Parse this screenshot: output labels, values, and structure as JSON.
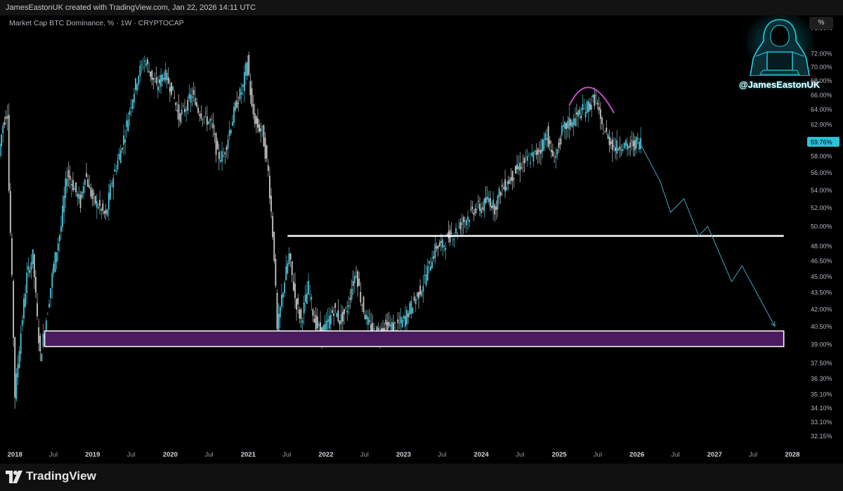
{
  "header": {
    "credit": "JamesEastonUK created with TradingView.com, Jan 22, 2026 14:11 UTC"
  },
  "symbol": {
    "title": "Market Cap BTC Dominance, % · 1W · CRYPTOCAP"
  },
  "scale_button": "%",
  "watermark": {
    "handle": "@JamesEastonUK",
    "icon": "hooded-hacker-at-laptop"
  },
  "footer": {
    "brand": "TradingView",
    "icon": "tradingview-logo-icon"
  },
  "colors": {
    "background": "#000000",
    "candle_up": "#4dc3d8",
    "candle_down": "#c8c8c8",
    "support_zone_fill": "#4a1c5e",
    "support_zone_border": "#ffffff",
    "resistance_line": "#ffffff",
    "arc": "#c34ac9",
    "projection": "#3aa7c4",
    "price_tag": "#2ec2d8"
  },
  "chart_data": {
    "type": "candlestick",
    "title": "Market Cap BTC Dominance, % · 1W · CRYPTOCAP",
    "interval": "1W",
    "scale": "log",
    "ylim": [
      31.6,
      78.0
    ],
    "xlim": [
      "2017-10-23",
      "2028-03-01"
    ],
    "y_tick_labels": [
      "76.00%",
      "72.00%",
      "70.00%",
      "68.00%",
      "66.00%",
      "64.00%",
      "62.00%",
      "58.00%",
      "56.00%",
      "54.00%",
      "52.00%",
      "50.00%",
      "48.00%",
      "46.50%",
      "45.00%",
      "43.50%",
      "42.00%",
      "40.50%",
      "39.00%",
      "37.50%",
      "36.30%",
      "35.10%",
      "34.10%",
      "33.10%",
      "32.15%"
    ],
    "x_tick_labels": [
      "2018",
      "Jul",
      "2019",
      "Jul",
      "2020",
      "Jul",
      "2021",
      "Jul",
      "2022",
      "Jul",
      "2023",
      "Jul",
      "2024",
      "Jul",
      "2025",
      "Jul",
      "2026",
      "Jul",
      "2027",
      "Jul",
      "2028"
    ],
    "last_value_label": "59.76%",
    "last_value": 59.76,
    "price_path": [
      [
        "2017-10-23",
        58
      ],
      [
        "2017-11-13",
        62
      ],
      [
        "2017-12-04",
        64
      ],
      [
        "2017-12-11",
        54
      ],
      [
        "2018-01-08",
        35
      ],
      [
        "2018-02-05",
        40
      ],
      [
        "2018-03-05",
        45
      ],
      [
        "2018-04-02",
        47
      ],
      [
        "2018-04-23",
        41
      ],
      [
        "2018-05-07",
        38
      ],
      [
        "2018-05-21",
        39.5
      ],
      [
        "2018-06-11",
        42
      ],
      [
        "2018-07-09",
        46
      ],
      [
        "2018-08-13",
        50
      ],
      [
        "2018-09-10",
        56
      ],
      [
        "2018-10-08",
        54.5
      ],
      [
        "2018-11-12",
        52.5
      ],
      [
        "2018-12-03",
        56
      ],
      [
        "2019-01-07",
        53
      ],
      [
        "2019-02-11",
        52
      ],
      [
        "2019-03-11",
        51
      ],
      [
        "2019-04-08",
        55
      ],
      [
        "2019-05-13",
        58
      ],
      [
        "2019-06-10",
        61
      ],
      [
        "2019-07-08",
        65
      ],
      [
        "2019-08-12",
        69
      ],
      [
        "2019-09-09",
        71
      ],
      [
        "2019-10-07",
        69
      ],
      [
        "2019-11-04",
        67
      ],
      [
        "2019-12-09",
        69
      ],
      [
        "2020-01-13",
        67
      ],
      [
        "2020-02-17",
        63
      ],
      [
        "2020-03-16",
        64
      ],
      [
        "2020-04-20",
        66
      ],
      [
        "2020-05-18",
        64
      ],
      [
        "2020-06-15",
        63
      ],
      [
        "2020-07-20",
        62
      ],
      [
        "2020-08-17",
        58
      ],
      [
        "2020-09-14",
        58
      ],
      [
        "2020-10-19",
        62
      ],
      [
        "2020-11-16",
        65
      ],
      [
        "2020-12-14",
        67
      ],
      [
        "2021-01-04",
        71
      ],
      [
        "2021-01-25",
        64
      ],
      [
        "2021-02-15",
        62
      ],
      [
        "2021-03-15",
        61
      ],
      [
        "2021-04-12",
        56
      ],
      [
        "2021-05-10",
        47
      ],
      [
        "2021-05-24",
        40
      ],
      [
        "2021-06-14",
        43
      ],
      [
        "2021-07-19",
        47
      ],
      [
        "2021-08-16",
        43
      ],
      [
        "2021-09-13",
        41
      ],
      [
        "2021-10-18",
        44
      ],
      [
        "2021-11-15",
        41
      ],
      [
        "2021-12-13",
        40
      ],
      [
        "2022-01-10",
        40.5
      ],
      [
        "2022-02-14",
        42
      ],
      [
        "2022-03-14",
        41
      ],
      [
        "2022-04-18",
        42
      ],
      [
        "2022-05-09",
        44
      ],
      [
        "2022-05-30",
        45.5
      ],
      [
        "2022-06-20",
        43
      ],
      [
        "2022-07-18",
        41
      ],
      [
        "2022-08-15",
        40
      ],
      [
        "2022-09-12",
        40
      ],
      [
        "2022-10-10",
        40.5
      ],
      [
        "2022-11-07",
        40.5
      ],
      [
        "2022-12-05",
        40.5
      ],
      [
        "2023-01-09",
        41
      ],
      [
        "2023-02-06",
        42
      ],
      [
        "2023-03-06",
        43
      ],
      [
        "2023-04-03",
        44
      ],
      [
        "2023-05-08",
        46
      ],
      [
        "2023-06-12",
        48
      ],
      [
        "2023-07-10",
        48
      ],
      [
        "2023-08-07",
        49
      ],
      [
        "2023-09-11",
        49.5
      ],
      [
        "2023-10-09",
        50.5
      ],
      [
        "2023-11-06",
        51
      ],
      [
        "2023-12-11",
        52
      ],
      [
        "2024-01-08",
        52
      ],
      [
        "2024-02-12",
        53
      ],
      [
        "2024-03-11",
        52
      ],
      [
        "2024-04-08",
        54
      ],
      [
        "2024-05-13",
        55
      ],
      [
        "2024-06-10",
        56
      ],
      [
        "2024-07-15",
        57
      ],
      [
        "2024-08-12",
        57.5
      ],
      [
        "2024-09-09",
        58
      ],
      [
        "2024-10-14",
        59
      ],
      [
        "2024-11-11",
        61
      ],
      [
        "2024-12-02",
        58
      ],
      [
        "2024-12-23",
        58
      ],
      [
        "2025-01-20",
        61
      ],
      [
        "2025-02-17",
        62
      ],
      [
        "2025-03-17",
        62.5
      ],
      [
        "2025-04-14",
        63.5
      ],
      [
        "2025-05-12",
        64
      ],
      [
        "2025-06-09",
        65
      ],
      [
        "2025-06-30",
        65.5
      ],
      [
        "2025-07-21",
        62
      ],
      [
        "2025-08-11",
        61
      ],
      [
        "2025-09-01",
        60
      ],
      [
        "2025-09-29",
        59
      ],
      [
        "2025-10-27",
        59.5
      ],
      [
        "2025-11-24",
        59
      ],
      [
        "2025-12-22",
        59.5
      ],
      [
        "2026-01-19",
        59.76
      ]
    ],
    "annotations": {
      "support_zone": {
        "x_start": "2018-05-21",
        "x_end": "2027-11-22",
        "y_low": 38.8,
        "y_high": 40.1
      },
      "resistance_line": {
        "x_start": "2021-07-05",
        "x_end": "2027-11-22",
        "y": 49.0
      },
      "arc": {
        "x_start": "2025-02-17",
        "x_peak": "2025-05-26",
        "x_end": "2025-09-15",
        "y_start": 64.5,
        "y_peak": 67.0,
        "y_end": 63.5
      },
      "projection_path": [
        [
          "2026-01-12",
          59.76
        ],
        [
          "2026-04-20",
          55
        ],
        [
          "2026-06-08",
          51.5
        ],
        [
          "2026-08-10",
          53
        ],
        [
          "2026-10-19",
          49
        ],
        [
          "2026-11-30",
          50
        ],
        [
          "2027-03-22",
          44.5
        ],
        [
          "2027-05-10",
          46
        ],
        [
          "2027-10-11",
          40.5
        ]
      ]
    }
  }
}
